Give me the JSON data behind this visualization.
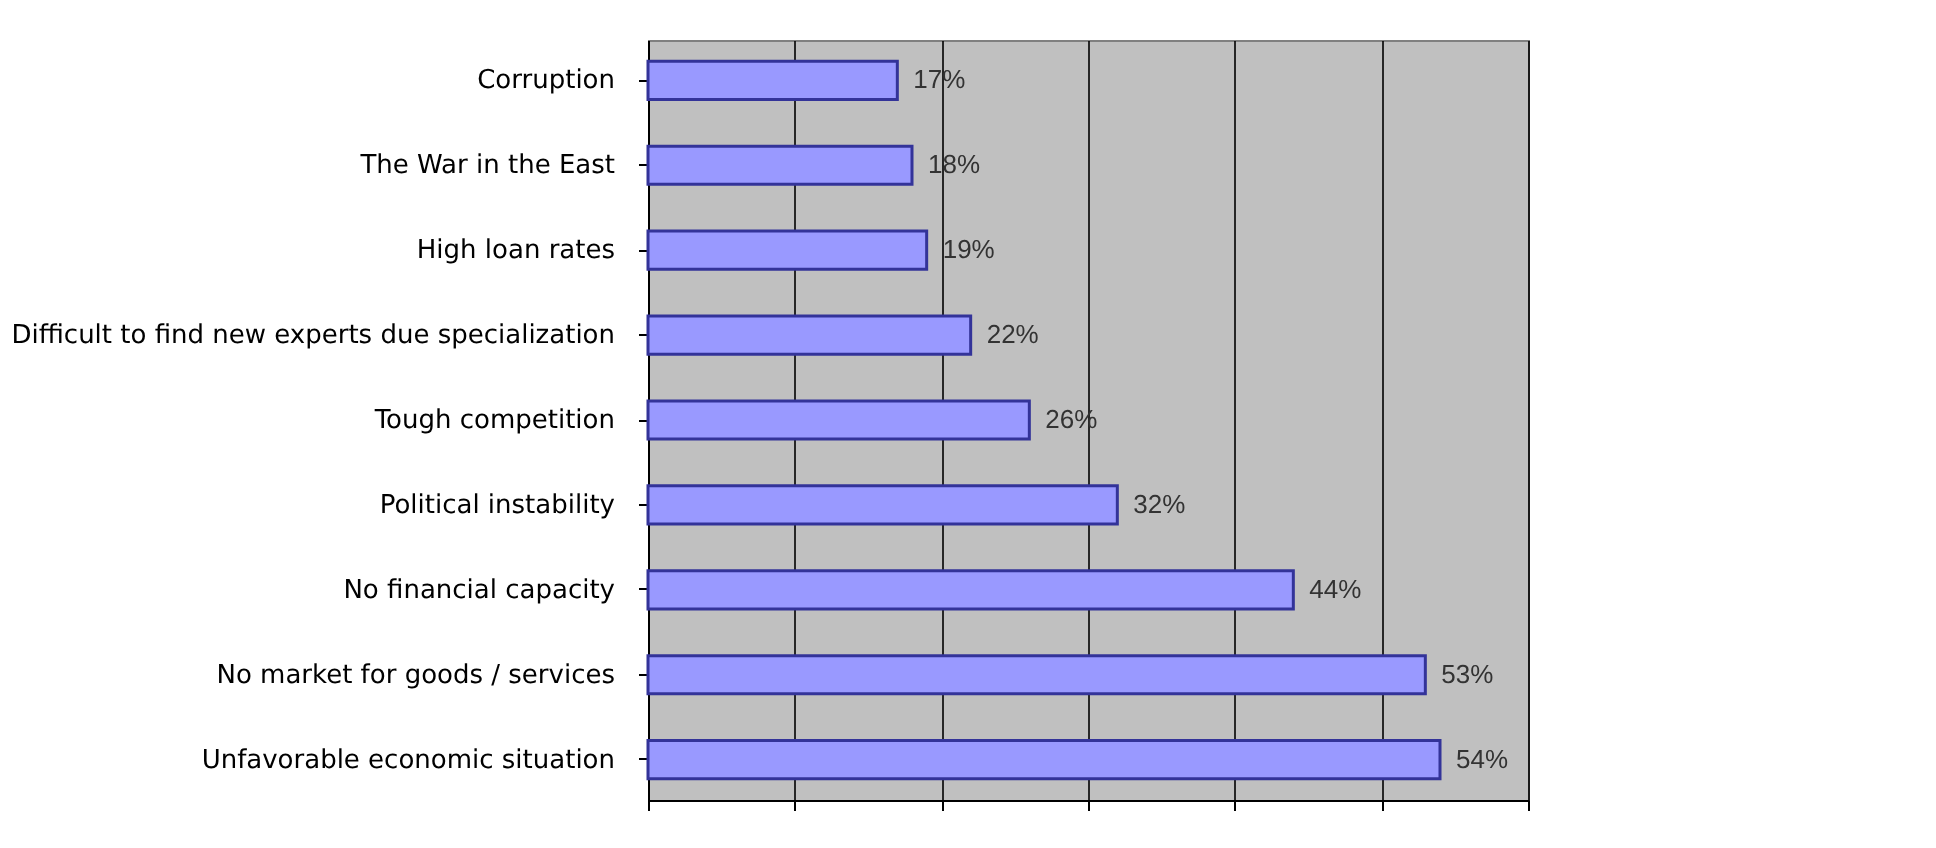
{
  "chart_data": {
    "type": "bar",
    "orientation": "horizontal",
    "categories": [
      "Corruption",
      "The War in the East",
      "High loan rates",
      "Difficult to find new experts due specialization",
      "Tough competition",
      "Political instability",
      "No financial capacity",
      "No market for goods / services",
      "Unfavorable economic situation"
    ],
    "values": [
      17,
      18,
      19,
      22,
      26,
      32,
      44,
      53,
      54
    ],
    "value_labels": [
      "17%",
      "18%",
      "19%",
      "22%",
      "26%",
      "32%",
      "44%",
      "53%",
      "54%"
    ],
    "color": "#9999ff",
    "xlim": [
      0,
      60
    ],
    "xticks": [
      {
        "value": 0,
        "label": null
      },
      {
        "value": 10,
        "label": null
      },
      {
        "value": 20,
        "label": null
      },
      {
        "value": 30,
        "label": null
      },
      {
        "value": 40,
        "label": null
      },
      {
        "value": 50,
        "label": null
      },
      {
        "value": 60,
        "label": null
      }
    ],
    "grid": "x"
  }
}
